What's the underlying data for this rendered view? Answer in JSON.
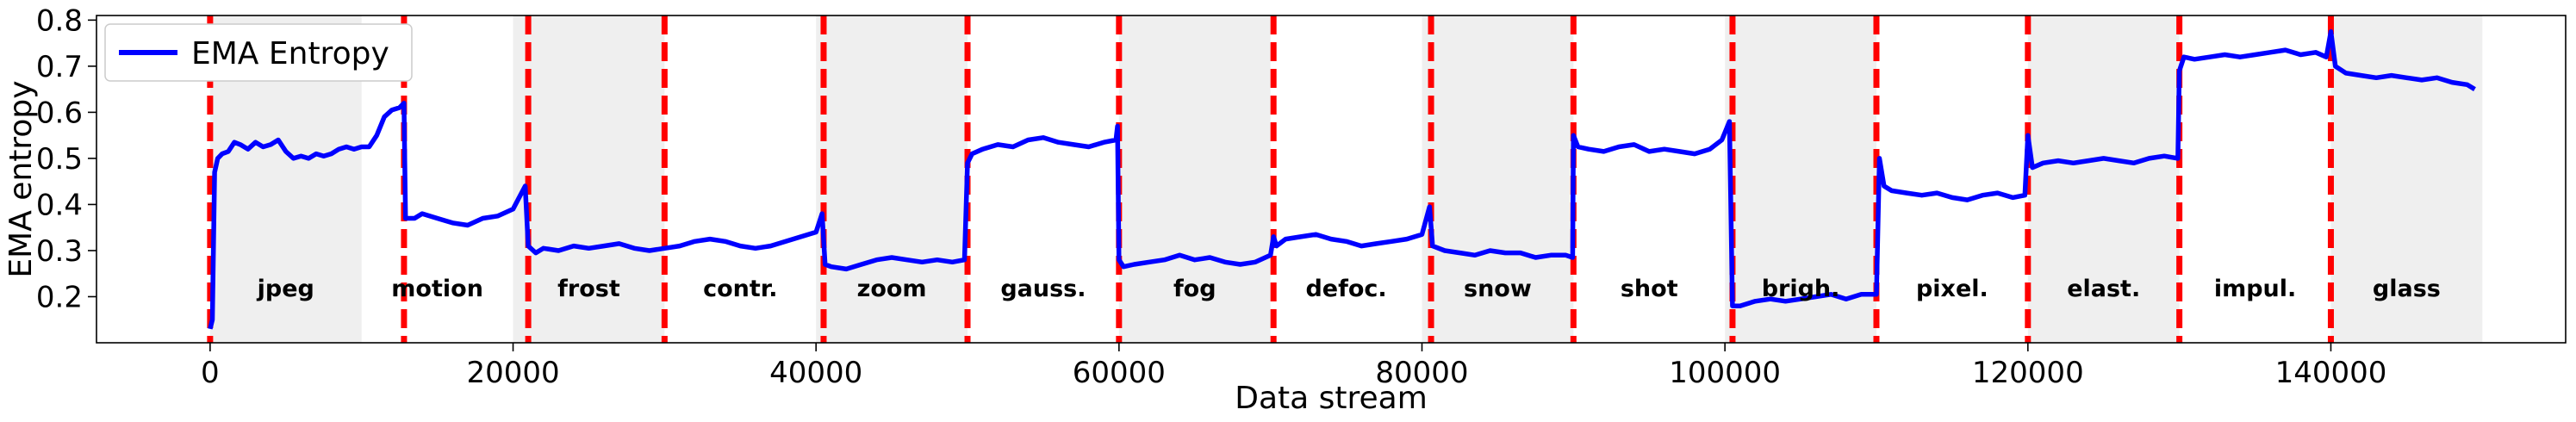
{
  "chart_data": {
    "type": "line",
    "xlabel": "Data stream",
    "ylabel": "EMA entropy",
    "xlim": [
      -7500,
      155500
    ],
    "ylim": [
      0.1,
      0.81
    ],
    "x_ticks": [
      0,
      20000,
      40000,
      60000,
      80000,
      100000,
      120000,
      140000
    ],
    "y_ticks": [
      0.2,
      0.3,
      0.4,
      0.5,
      0.6,
      0.7,
      0.8
    ],
    "legend": {
      "position": "top-left",
      "entries": [
        "EMA Entropy"
      ]
    },
    "grid": false,
    "colors": {
      "line": "#0000ff",
      "boundary": "#ff0000",
      "shade": "#efefef"
    },
    "domains": [
      {
        "label": "jpeg",
        "start": 0,
        "end": 10000,
        "shaded": true
      },
      {
        "label": "motion",
        "start": 10000,
        "end": 20000,
        "shaded": false
      },
      {
        "label": "frost",
        "start": 20000,
        "end": 30000,
        "shaded": true
      },
      {
        "label": "contr.",
        "start": 30000,
        "end": 40000,
        "shaded": false
      },
      {
        "label": "zoom",
        "start": 40000,
        "end": 50000,
        "shaded": true
      },
      {
        "label": "gauss.",
        "start": 50000,
        "end": 60000,
        "shaded": false
      },
      {
        "label": "fog",
        "start": 60000,
        "end": 70000,
        "shaded": true
      },
      {
        "label": "defoc.",
        "start": 70000,
        "end": 80000,
        "shaded": false
      },
      {
        "label": "snow",
        "start": 80000,
        "end": 90000,
        "shaded": true
      },
      {
        "label": "shot",
        "start": 90000,
        "end": 100000,
        "shaded": false
      },
      {
        "label": "brigh.",
        "start": 100000,
        "end": 110000,
        "shaded": true
      },
      {
        "label": "pixel.",
        "start": 110000,
        "end": 120000,
        "shaded": false
      },
      {
        "label": "elast.",
        "start": 120000,
        "end": 130000,
        "shaded": true
      },
      {
        "label": "impul.",
        "start": 130000,
        "end": 140000,
        "shaded": false
      },
      {
        "label": "glass",
        "start": 140000,
        "end": 150000,
        "shaded": true
      }
    ],
    "boundaries": [
      0,
      12800,
      21000,
      30000,
      40500,
      50000,
      60000,
      70200,
      80600,
      90000,
      100500,
      110000,
      120000,
      130000,
      140000
    ],
    "series": [
      {
        "name": "EMA Entropy",
        "points": [
          [
            0,
            0.13
          ],
          [
            150,
            0.15
          ],
          [
            300,
            0.47
          ],
          [
            500,
            0.5
          ],
          [
            800,
            0.51
          ],
          [
            1200,
            0.515
          ],
          [
            1600,
            0.535
          ],
          [
            2000,
            0.53
          ],
          [
            2500,
            0.52
          ],
          [
            3000,
            0.535
          ],
          [
            3500,
            0.525
          ],
          [
            4000,
            0.53
          ],
          [
            4500,
            0.54
          ],
          [
            5000,
            0.515
          ],
          [
            5500,
            0.5
          ],
          [
            6000,
            0.505
          ],
          [
            6500,
            0.5
          ],
          [
            7000,
            0.51
          ],
          [
            7500,
            0.505
          ],
          [
            8000,
            0.51
          ],
          [
            8500,
            0.52
          ],
          [
            9000,
            0.525
          ],
          [
            9500,
            0.52
          ],
          [
            10000,
            0.525
          ],
          [
            10500,
            0.525
          ],
          [
            11000,
            0.55
          ],
          [
            11500,
            0.59
          ],
          [
            12000,
            0.605
          ],
          [
            12500,
            0.61
          ],
          [
            12800,
            0.62
          ],
          [
            12900,
            0.37
          ],
          [
            13500,
            0.37
          ],
          [
            14000,
            0.38
          ],
          [
            15000,
            0.37
          ],
          [
            16000,
            0.36
          ],
          [
            17000,
            0.355
          ],
          [
            18000,
            0.37
          ],
          [
            19000,
            0.375
          ],
          [
            20000,
            0.39
          ],
          [
            20800,
            0.44
          ],
          [
            21000,
            0.31
          ],
          [
            21500,
            0.295
          ],
          [
            22000,
            0.305
          ],
          [
            23000,
            0.3
          ],
          [
            24000,
            0.31
          ],
          [
            25000,
            0.305
          ],
          [
            26000,
            0.31
          ],
          [
            27000,
            0.315
          ],
          [
            28000,
            0.305
          ],
          [
            29000,
            0.3
          ],
          [
            30000,
            0.305
          ],
          [
            31000,
            0.31
          ],
          [
            32000,
            0.32
          ],
          [
            33000,
            0.325
          ],
          [
            34000,
            0.32
          ],
          [
            35000,
            0.31
          ],
          [
            36000,
            0.305
          ],
          [
            37000,
            0.31
          ],
          [
            38000,
            0.32
          ],
          [
            39000,
            0.33
          ],
          [
            40000,
            0.34
          ],
          [
            40400,
            0.38
          ],
          [
            40600,
            0.27
          ],
          [
            41000,
            0.265
          ],
          [
            42000,
            0.26
          ],
          [
            43000,
            0.27
          ],
          [
            44000,
            0.28
          ],
          [
            45000,
            0.285
          ],
          [
            46000,
            0.28
          ],
          [
            47000,
            0.275
          ],
          [
            48000,
            0.28
          ],
          [
            49000,
            0.275
          ],
          [
            49800,
            0.28
          ],
          [
            50000,
            0.49
          ],
          [
            50300,
            0.51
          ],
          [
            51000,
            0.52
          ],
          [
            52000,
            0.53
          ],
          [
            53000,
            0.525
          ],
          [
            54000,
            0.54
          ],
          [
            55000,
            0.545
          ],
          [
            56000,
            0.535
          ],
          [
            57000,
            0.53
          ],
          [
            58000,
            0.525
          ],
          [
            59000,
            0.535
          ],
          [
            59800,
            0.54
          ],
          [
            59900,
            0.57
          ],
          [
            60000,
            0.28
          ],
          [
            60300,
            0.265
          ],
          [
            61000,
            0.27
          ],
          [
            62000,
            0.275
          ],
          [
            63000,
            0.28
          ],
          [
            64000,
            0.29
          ],
          [
            65000,
            0.28
          ],
          [
            66000,
            0.285
          ],
          [
            67000,
            0.275
          ],
          [
            68000,
            0.27
          ],
          [
            69000,
            0.275
          ],
          [
            70000,
            0.29
          ],
          [
            70200,
            0.33
          ],
          [
            70400,
            0.31
          ],
          [
            71000,
            0.325
          ],
          [
            72000,
            0.33
          ],
          [
            73000,
            0.335
          ],
          [
            74000,
            0.325
          ],
          [
            75000,
            0.32
          ],
          [
            76000,
            0.31
          ],
          [
            77000,
            0.315
          ],
          [
            78000,
            0.32
          ],
          [
            79000,
            0.325
          ],
          [
            80000,
            0.335
          ],
          [
            80500,
            0.395
          ],
          [
            80700,
            0.31
          ],
          [
            81500,
            0.3
          ],
          [
            82500,
            0.295
          ],
          [
            83500,
            0.29
          ],
          [
            84500,
            0.3
          ],
          [
            85500,
            0.295
          ],
          [
            86500,
            0.295
          ],
          [
            87500,
            0.285
          ],
          [
            88500,
            0.29
          ],
          [
            89500,
            0.29
          ],
          [
            89950,
            0.285
          ],
          [
            90000,
            0.55
          ],
          [
            90300,
            0.525
          ],
          [
            91000,
            0.52
          ],
          [
            92000,
            0.515
          ],
          [
            93000,
            0.525
          ],
          [
            94000,
            0.53
          ],
          [
            95000,
            0.515
          ],
          [
            96000,
            0.52
          ],
          [
            97000,
            0.515
          ],
          [
            98000,
            0.51
          ],
          [
            99000,
            0.52
          ],
          [
            99800,
            0.54
          ],
          [
            100300,
            0.58
          ],
          [
            100500,
            0.18
          ],
          [
            101000,
            0.18
          ],
          [
            102000,
            0.19
          ],
          [
            103000,
            0.195
          ],
          [
            104000,
            0.19
          ],
          [
            105000,
            0.195
          ],
          [
            106000,
            0.2
          ],
          [
            107000,
            0.205
          ],
          [
            108000,
            0.195
          ],
          [
            109000,
            0.205
          ],
          [
            110000,
            0.205
          ],
          [
            110200,
            0.5
          ],
          [
            110500,
            0.44
          ],
          [
            111000,
            0.43
          ],
          [
            112000,
            0.425
          ],
          [
            113000,
            0.42
          ],
          [
            114000,
            0.425
          ],
          [
            115000,
            0.415
          ],
          [
            116000,
            0.41
          ],
          [
            117000,
            0.42
          ],
          [
            118000,
            0.425
          ],
          [
            119000,
            0.415
          ],
          [
            119800,
            0.42
          ],
          [
            120000,
            0.55
          ],
          [
            120300,
            0.48
          ],
          [
            121000,
            0.49
          ],
          [
            122000,
            0.495
          ],
          [
            123000,
            0.49
          ],
          [
            124000,
            0.495
          ],
          [
            125000,
            0.5
          ],
          [
            126000,
            0.495
          ],
          [
            127000,
            0.49
          ],
          [
            128000,
            0.5
          ],
          [
            129000,
            0.505
          ],
          [
            129900,
            0.5
          ],
          [
            130000,
            0.69
          ],
          [
            130300,
            0.72
          ],
          [
            131000,
            0.715
          ],
          [
            132000,
            0.72
          ],
          [
            133000,
            0.725
          ],
          [
            134000,
            0.72
          ],
          [
            135000,
            0.725
          ],
          [
            136000,
            0.73
          ],
          [
            137000,
            0.735
          ],
          [
            138000,
            0.725
          ],
          [
            139000,
            0.73
          ],
          [
            139700,
            0.72
          ],
          [
            140000,
            0.775
          ],
          [
            140300,
            0.7
          ],
          [
            141000,
            0.685
          ],
          [
            142000,
            0.68
          ],
          [
            143000,
            0.675
          ],
          [
            144000,
            0.68
          ],
          [
            145000,
            0.675
          ],
          [
            146000,
            0.67
          ],
          [
            147000,
            0.675
          ],
          [
            148000,
            0.665
          ],
          [
            149000,
            0.66
          ],
          [
            149500,
            0.65
          ]
        ]
      }
    ]
  }
}
